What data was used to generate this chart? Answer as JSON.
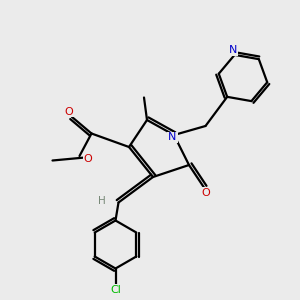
{
  "bg_color": "#ebebeb",
  "atoms": {
    "N": {
      "color": "#0000cc"
    },
    "O": {
      "color": "#cc0000"
    },
    "Cl": {
      "color": "#00bb00"
    },
    "H": {
      "color": "#778877"
    },
    "C": {
      "color": "#000000"
    }
  },
  "bond_color": "#000000",
  "bond_width": 1.6
}
